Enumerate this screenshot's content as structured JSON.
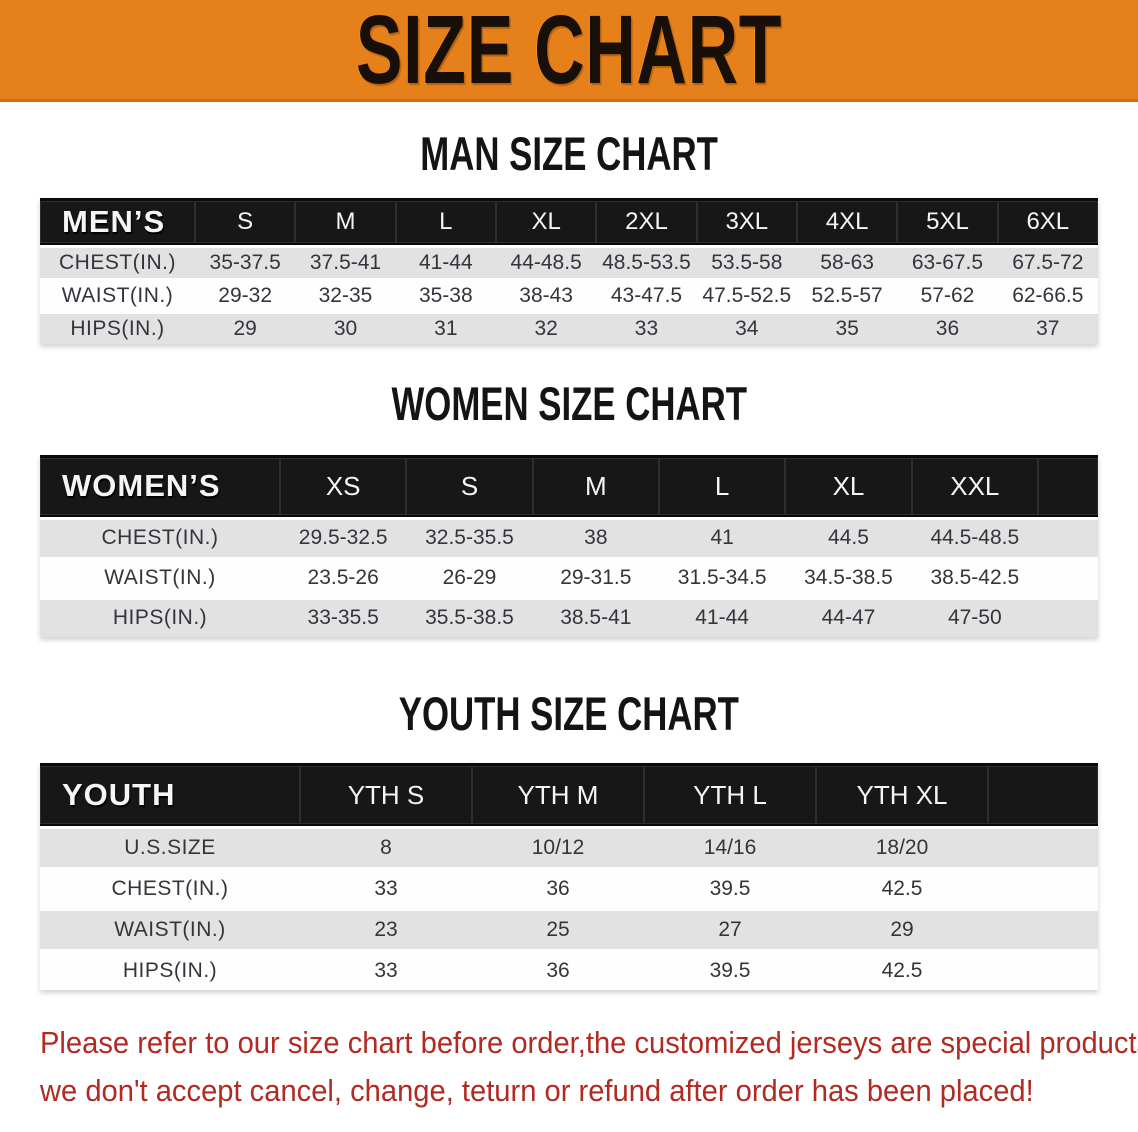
{
  "banner": {
    "title": "SIZE CHART"
  },
  "colors": {
    "banner_orange": "#e6801a",
    "header_bar": "#171717",
    "row_gray": "#e2e2e3",
    "value_text": "#34343c",
    "heading_text": "#141414",
    "disclaimer_red": "#b22a21"
  },
  "chart_data": [
    {
      "type": "table",
      "title": "MAN SIZE CHART",
      "header": [
        "MEN’S",
        "S",
        "M",
        "L",
        "XL",
        "2XL",
        "3XL",
        "4XL",
        "5XL",
        "6XL"
      ],
      "rows": [
        {
          "label": "CHEST(IN.)",
          "values": [
            "35-37.5",
            "37.5-41",
            "41-44",
            "44-48.5",
            "48.5-53.5",
            "53.5-58",
            "58-63",
            "63-67.5",
            "67.5-72"
          ]
        },
        {
          "label": "WAIST(IN.)",
          "values": [
            "29-32",
            "32-35",
            "35-38",
            "38-43",
            "43-47.5",
            "47.5-52.5",
            "52.5-57",
            "57-62",
            "62-66.5"
          ]
        },
        {
          "label": "HIPS(IN.)",
          "values": [
            "29",
            "30",
            "31",
            "32",
            "33",
            "34",
            "35",
            "36",
            "37"
          ]
        }
      ]
    },
    {
      "type": "table",
      "title": "WOMEN SIZE CHART",
      "header": [
        "WOMEN’S",
        "XS",
        "S",
        "M",
        "L",
        "XL",
        "XXL"
      ],
      "rows": [
        {
          "label": "CHEST(IN.)",
          "values": [
            "29.5-32.5",
            "32.5-35.5",
            "38",
            "41",
            "44.5",
            "44.5-48.5"
          ]
        },
        {
          "label": "WAIST(IN.)",
          "values": [
            "23.5-26",
            "26-29",
            "29-31.5",
            "31.5-34.5",
            "34.5-38.5",
            "38.5-42.5"
          ]
        },
        {
          "label": "HIPS(IN.)",
          "values": [
            "33-35.5",
            "35.5-38.5",
            "38.5-41",
            "41-44",
            "44-47",
            "47-50"
          ]
        }
      ]
    },
    {
      "type": "table",
      "title": "YOUTH SIZE CHART",
      "header": [
        "YOUTH",
        "YTH S",
        "YTH M",
        "YTH L",
        "YTH XL"
      ],
      "rows": [
        {
          "label": "U.S.SIZE",
          "values": [
            "8",
            "10/12",
            "14/16",
            "18/20"
          ]
        },
        {
          "label": "CHEST(IN.)",
          "values": [
            "33",
            "36",
            "39.5",
            "42.5"
          ]
        },
        {
          "label": "WAIST(IN.)",
          "values": [
            "23",
            "25",
            "27",
            "29"
          ]
        },
        {
          "label": "HIPS(IN.)",
          "values": [
            "33",
            "36",
            "39.5",
            "42.5"
          ]
        }
      ]
    }
  ],
  "disclaimer": {
    "lines": [
      "Please refer to our size chart before order,the customized jerseys are special products,",
      "we don't accept cancel, change, teturn or refund after order has been placed!"
    ]
  }
}
